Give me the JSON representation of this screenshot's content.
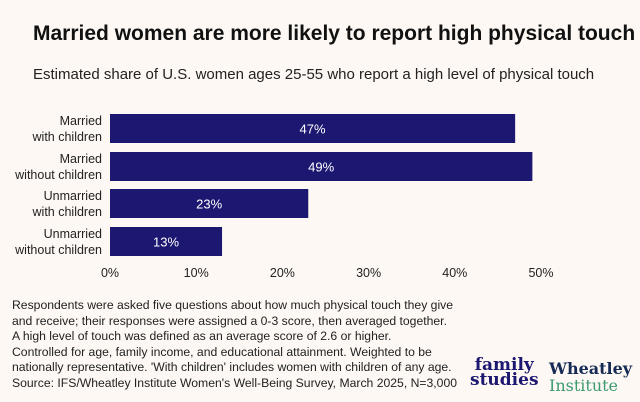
{
  "chart_data": {
    "type": "bar",
    "orientation": "horizontal",
    "title": "Married women are more likely to report high physical touch",
    "subtitle": "Estimated share of U.S. women ages 25-55 who report a high level of physical touch",
    "categories": [
      [
        "Married",
        "with children"
      ],
      [
        "Married",
        "without children"
      ],
      [
        "Unmarried",
        "with children"
      ],
      [
        "Unmarried",
        "without children"
      ]
    ],
    "values": [
      47,
      49,
      23,
      13
    ],
    "data_labels": [
      "47%",
      "49%",
      "23%",
      "13%"
    ],
    "xlim": [
      0,
      50
    ],
    "xticks": [
      "0%",
      "10%",
      "20%",
      "30%",
      "40%",
      "50%"
    ],
    "grid": false,
    "bar_color": "#1c1770"
  },
  "notes": [
    "Respondents were asked five questions about how much physical touch they give",
    "and receive; their responses were assigned a 0-3 score, then averaged together.",
    "A high level of touch was defined as an average score of 2.6 or higher.",
    "Controlled for age, family income, and educational attainment. Weighted to be",
    "nationally representative. 'With children' includes women with children of any age.",
    "Source: IFS/Wheatley Institute Women's Well-Being Survey, March 2025, N=3,000"
  ],
  "logos": {
    "family_studies": [
      "family",
      "studies"
    ],
    "wheatley": [
      "Wheatley",
      "Institute"
    ]
  }
}
